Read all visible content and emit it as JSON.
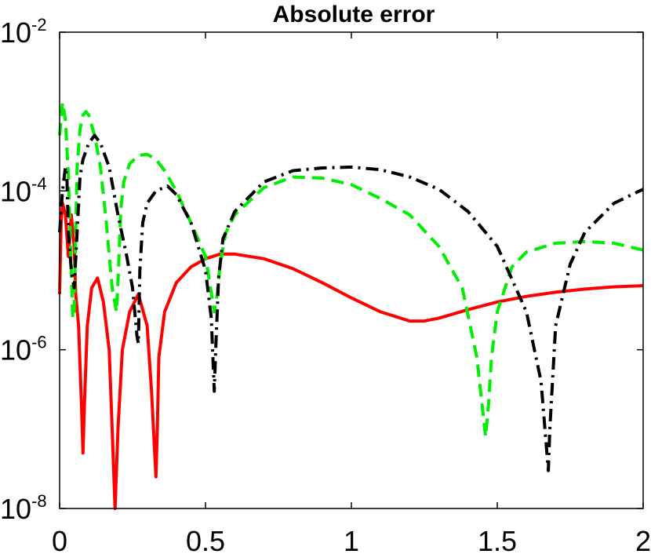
{
  "chart_data": {
    "type": "line",
    "title": "Absolute error",
    "xlabel": "",
    "ylabel": "",
    "xlim": [
      0,
      2
    ],
    "ylim": [
      1e-08,
      0.01
    ],
    "yscale": "log",
    "grid": false,
    "legend": "none",
    "x_ticks": [
      {
        "value": 0,
        "label": "0"
      },
      {
        "value": 0.5,
        "label": "0.5"
      },
      {
        "value": 1,
        "label": "1"
      },
      {
        "value": 1.5,
        "label": "1.5"
      },
      {
        "value": 2,
        "label": "2"
      }
    ],
    "y_ticks": [
      {
        "value": 1e-08,
        "base": "10",
        "exp": "-8"
      },
      {
        "value": 1e-06,
        "base": "10",
        "exp": "-6"
      },
      {
        "value": 0.0001,
        "base": "10",
        "exp": "-4"
      },
      {
        "value": 0.01,
        "base": "10",
        "exp": "-2"
      }
    ],
    "series": [
      {
        "color": "#ff0000",
        "style": "solid",
        "x": [
          0.0,
          0.005,
          0.01,
          0.02,
          0.03,
          0.04,
          0.05,
          0.055,
          0.065,
          0.075,
          0.08,
          0.085,
          0.095,
          0.11,
          0.13,
          0.15,
          0.17,
          0.18,
          0.19,
          0.2,
          0.215,
          0.24,
          0.27,
          0.3,
          0.315,
          0.33,
          0.335,
          0.34,
          0.36,
          0.4,
          0.45,
          0.5,
          0.55,
          0.6,
          0.7,
          0.8,
          0.9,
          1.0,
          1.1,
          1.2,
          1.25,
          1.3,
          1.4,
          1.5,
          1.6,
          1.7,
          1.8,
          1.9,
          2.0
        ],
        "y": [
          5e-06,
          4e-05,
          7e-05,
          5e-05,
          1.5e-05,
          5e-05,
          2e-05,
          5e-06,
          2e-06,
          2e-07,
          5e-08,
          2e-07,
          2e-06,
          6e-06,
          8e-06,
          4e-06,
          1e-06,
          1e-07,
          1e-08,
          1e-07,
          1e-06,
          3e-06,
          5e-06,
          2e-06,
          3e-07,
          2.5e-08,
          1e-07,
          8e-07,
          3e-06,
          7e-06,
          1.1e-05,
          1.4e-05,
          1.6e-05,
          1.6e-05,
          1.4e-05,
          1.05e-05,
          7e-06,
          4.5e-06,
          3e-06,
          2.3e-06,
          2.3e-06,
          2.5e-06,
          3.2e-06,
          4e-06,
          4.7e-06,
          5.3e-06,
          5.8e-06,
          6.2e-06,
          6.4e-06
        ]
      },
      {
        "color": "#00ee00",
        "style": "dashed",
        "x": [
          0.0,
          0.01,
          0.02,
          0.03,
          0.04,
          0.045,
          0.05,
          0.055,
          0.06,
          0.07,
          0.08,
          0.09,
          0.1,
          0.12,
          0.14,
          0.16,
          0.18,
          0.195,
          0.2,
          0.21,
          0.22,
          0.24,
          0.27,
          0.3,
          0.33,
          0.36,
          0.4,
          0.45,
          0.5,
          0.53,
          0.54,
          0.55,
          0.57,
          0.6,
          0.7,
          0.8,
          0.9,
          1.0,
          1.1,
          1.2,
          1.3,
          1.38,
          1.43,
          1.46,
          1.47,
          1.48,
          1.5,
          1.55,
          1.6,
          1.7,
          1.8,
          1.9,
          2.0
        ],
        "y": [
          0.0005,
          0.0013,
          0.0008,
          0.00015,
          1e-05,
          2.5e-06,
          3e-06,
          3e-05,
          0.0002,
          0.0006,
          0.0009,
          0.001,
          0.0009,
          0.0005,
          0.0002,
          4e-05,
          6e-06,
          3e-06,
          7e-06,
          6e-05,
          0.00013,
          0.00022,
          0.00028,
          0.00029,
          0.00025,
          0.00018,
          0.0001,
          4e-05,
          1.5e-05,
          3e-06,
          5e-06,
          1.2e-05,
          3e-05,
          5e-05,
          0.00011,
          0.00015,
          0.000145,
          0.00012,
          8e-05,
          5e-05,
          2e-05,
          6e-06,
          8e-07,
          8e-08,
          2e-07,
          8e-07,
          3e-06,
          1.1e-05,
          1.7e-05,
          2.2e-05,
          2.3e-05,
          2.2e-05,
          1.8e-05
        ]
      },
      {
        "color": "#000000",
        "style": "dashdot",
        "x": [
          0.0,
          0.01,
          0.02,
          0.025,
          0.03,
          0.04,
          0.05,
          0.06,
          0.07,
          0.08,
          0.1,
          0.12,
          0.14,
          0.17,
          0.2,
          0.23,
          0.25,
          0.265,
          0.27,
          0.275,
          0.285,
          0.3,
          0.33,
          0.37,
          0.4,
          0.45,
          0.5,
          0.52,
          0.53,
          0.535,
          0.545,
          0.56,
          0.6,
          0.7,
          0.8,
          0.9,
          1.0,
          1.1,
          1.2,
          1.3,
          1.4,
          1.5,
          1.6,
          1.65,
          1.675,
          1.68,
          1.7,
          1.75,
          1.8,
          1.9,
          2.0
        ],
        "y": [
          3e-05,
          0.0001,
          0.0002,
          0.00015,
          3e-05,
          1e-05,
          6e-06,
          3e-05,
          0.00015,
          0.00025,
          0.0004,
          0.0005,
          0.0004,
          0.0002,
          5e-05,
          1.5e-05,
          6e-06,
          1.5e-06,
          1.2e-06,
          1e-05,
          4e-05,
          7e-05,
          0.0001,
          0.000115,
          9e-05,
          4e-05,
          1e-05,
          2.5e-06,
          3e-07,
          1e-06,
          8e-06,
          2.5e-05,
          5.5e-05,
          0.00013,
          0.00018,
          0.000195,
          0.0002,
          0.000185,
          0.00015,
          0.000105,
          5.5e-05,
          2e-05,
          3e-06,
          4e-07,
          3e-08,
          1e-07,
          2e-06,
          1.2e-05,
          3e-05,
          7e-05,
          0.000105
        ]
      }
    ]
  }
}
